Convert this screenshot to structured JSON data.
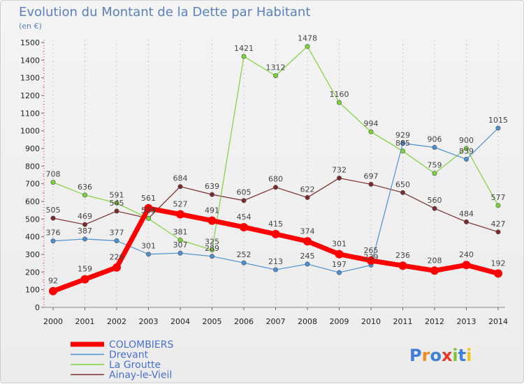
{
  "chart_data": {
    "type": "line",
    "title": "Evolution du Montant de la Dette par Habitant",
    "subtitle": "(en €)",
    "xlabel": "",
    "ylabel": "",
    "ylim": [
      0,
      1500
    ],
    "y_ticks": [
      0,
      100,
      200,
      300,
      400,
      500,
      600,
      700,
      800,
      900,
      1000,
      1100,
      1200,
      1300,
      1400,
      1500
    ],
    "categories": [
      "2000",
      "2001",
      "2002",
      "2003",
      "2004",
      "2005",
      "2006",
      "2007",
      "2008",
      "2009",
      "2010",
      "2011",
      "2012",
      "2013",
      "2014"
    ],
    "grid": "vertical dashed",
    "legend_position": "bottom-left",
    "series": [
      {
        "name": "COLOMBIERS",
        "color": "#ff0000",
        "values": [
          92,
          159,
          226,
          561,
          527,
          491,
          454,
          415,
          374,
          301,
          265,
          236,
          208,
          240,
          192
        ]
      },
      {
        "name": "Drevant",
        "color": "#4a90d0",
        "values": [
          376,
          387,
          377,
          301,
          307,
          289,
          252,
          213,
          245,
          197,
          239,
          929,
          906,
          839,
          1015
        ]
      },
      {
        "name": "La Groutte",
        "color": "#7dd23a",
        "values": [
          708,
          636,
          591,
          503,
          381,
          325,
          1421,
          1312,
          1478,
          1160,
          994,
          885,
          759,
          900,
          577
        ]
      },
      {
        "name": "Ainay-le-Vieil",
        "color": "#7a2a2a",
        "values": [
          505,
          469,
          545,
          504,
          684,
          639,
          605,
          680,
          622,
          732,
          697,
          650,
          560,
          484,
          427
        ]
      }
    ]
  },
  "branding": {
    "logo_text": "Proxiti"
  }
}
